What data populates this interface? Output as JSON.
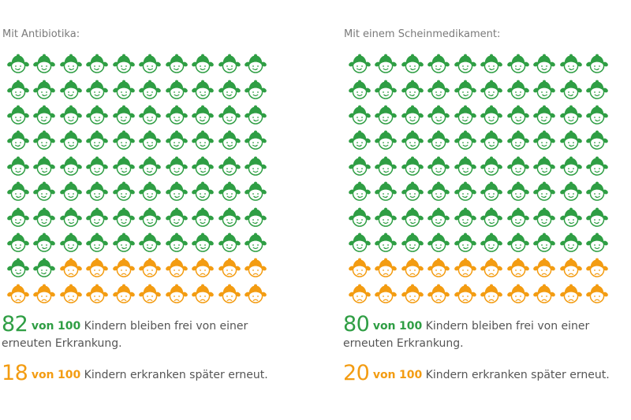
{
  "colors": {
    "healthy": "#2f9e44",
    "sick": "#f39c12",
    "text": "#555555",
    "caption": "#7a7a7a"
  },
  "panels": [
    {
      "caption": "Mit Antibiotika:",
      "healthy_count": 82,
      "sick_count": 18,
      "total": 100,
      "stat_healthy": {
        "number": "82",
        "von": "von",
        "total": "100",
        "rest_line1": " Kindern bleiben frei von einer",
        "rest_line2": "erneuten Erkrankung."
      },
      "stat_sick": {
        "number": "18",
        "von": "von",
        "total": "100",
        "rest": " Kindern erkranken später erneut."
      }
    },
    {
      "caption": "Mit einem Scheinmedikament:",
      "healthy_count": 80,
      "sick_count": 20,
      "total": 100,
      "stat_healthy": {
        "number": "80",
        "von": "von",
        "total": "100",
        "rest_line1": " Kindern bleiben frei von einer",
        "rest_line2": "erneuten Erkrankung."
      },
      "stat_sick": {
        "number": "20",
        "von": "von",
        "total": "100",
        "rest": " Kindern erkranken später erneut."
      }
    }
  ],
  "icons": {
    "healthy": "smiling-child-face-icon",
    "sick": "sad-child-face-icon"
  }
}
